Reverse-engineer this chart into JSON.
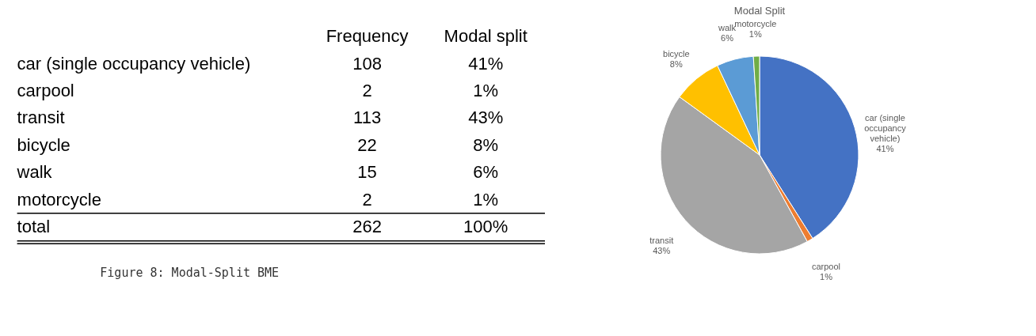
{
  "chart_data": [
    {
      "type": "other",
      "categories": [
        "car (single occupancy vehicle)",
        "carpool",
        "transit",
        "bicycle",
        "walk",
        "motorcycle",
        "total"
      ],
      "data_labels": true,
      "series": [
        {
          "name": "Frequency",
          "values": [
            108,
            2,
            113,
            22,
            15,
            2,
            262
          ]
        },
        {
          "name": "Modal split",
          "values": [
            41,
            1,
            43,
            8,
            6,
            1,
            100
          ],
          "value_labels": [
            "41%",
            "1%",
            "43%",
            "8%",
            "6%",
            "1%",
            "100%"
          ]
        }
      ],
      "annotations": [
        "Figure 8: Modal-Split BME"
      ]
    },
    {
      "type": "pie",
      "title": "Modal Split",
      "categories": [
        "car (single occupancy vehicle)",
        "carpool",
        "transit",
        "bicycle",
        "walk",
        "motorcycle"
      ],
      "values": [
        41,
        1,
        43,
        8,
        6,
        1
      ],
      "colors": [
        "#4472c4",
        "#ed7d31",
        "#a5a5a5",
        "#ffc000",
        "#5b9bd5",
        "#70ad47"
      ],
      "value_labels": [
        "41%",
        "1%",
        "43%",
        "8%",
        "6%",
        "1%"
      ]
    }
  ]
}
